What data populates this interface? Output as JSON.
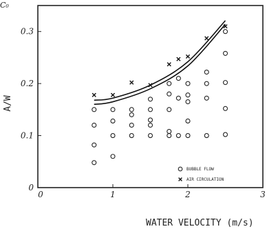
{
  "chart_data": {
    "type": "scatter",
    "corner_label": "C₀",
    "xlabel": "WATER VELOCITY (m/s)",
    "ylabel": "A/W",
    "xlim": [
      0,
      3
    ],
    "ylim": [
      0,
      0.35
    ],
    "xticks": [
      "0",
      "1",
      "2",
      "3"
    ],
    "yticks": [
      "0",
      "0.1",
      "0.2",
      "0.3"
    ],
    "ytick_values": [
      0,
      0.1,
      0.2,
      0.3
    ],
    "xtick_values": [
      0,
      1,
      2,
      3
    ],
    "series": [
      {
        "name": "BUBBLE FLOW",
        "marker": "circle",
        "points": [
          [
            0.75,
            0.15
          ],
          [
            0.75,
            0.12
          ],
          [
            0.75,
            0.082
          ],
          [
            0.75,
            0.048
          ],
          [
            1.0,
            0.15
          ],
          [
            1.0,
            0.128
          ],
          [
            1.0,
            0.1
          ],
          [
            1.0,
            0.06
          ],
          [
            1.25,
            0.15
          ],
          [
            1.25,
            0.14
          ],
          [
            1.25,
            0.12
          ],
          [
            1.25,
            0.1
          ],
          [
            1.5,
            0.17
          ],
          [
            1.5,
            0.15
          ],
          [
            1.5,
            0.13
          ],
          [
            1.5,
            0.12
          ],
          [
            1.5,
            0.1
          ],
          [
            1.75,
            0.2
          ],
          [
            1.75,
            0.18
          ],
          [
            1.75,
            0.15
          ],
          [
            1.75,
            0.108
          ],
          [
            1.75,
            0.1
          ],
          [
            1.875,
            0.21
          ],
          [
            1.875,
            0.172
          ],
          [
            1.875,
            0.1
          ],
          [
            2.0,
            0.2
          ],
          [
            2.0,
            0.178
          ],
          [
            2.0,
            0.165
          ],
          [
            2.0,
            0.128
          ],
          [
            2.0,
            0.1
          ],
          [
            2.25,
            0.222
          ],
          [
            2.25,
            0.2
          ],
          [
            2.25,
            0.172
          ],
          [
            2.25,
            0.1
          ],
          [
            2.5,
            0.3
          ],
          [
            2.5,
            0.258
          ],
          [
            2.5,
            0.202
          ],
          [
            2.5,
            0.152
          ],
          [
            2.5,
            0.102
          ]
        ]
      },
      {
        "name": "AIR CIRCULATION",
        "marker": "x",
        "points": [
          [
            0.75,
            0.178
          ],
          [
            1.0,
            0.178
          ],
          [
            1.25,
            0.202
          ],
          [
            1.5,
            0.197
          ],
          [
            1.75,
            0.237
          ],
          [
            1.875,
            0.247
          ],
          [
            2.0,
            0.252
          ],
          [
            2.25,
            0.287
          ],
          [
            2.5,
            0.31
          ]
        ]
      }
    ],
    "boundary_curves": [
      {
        "x": [
          0.75,
          1.0,
          1.5,
          2.0,
          2.5
        ],
        "y": [
          0.168,
          0.172,
          0.197,
          0.242,
          0.321
        ]
      },
      {
        "x": [
          0.75,
          1.0,
          1.5,
          2.0,
          2.5
        ],
        "y": [
          0.16,
          0.165,
          0.19,
          0.234,
          0.314
        ]
      }
    ],
    "legend_position": "lower-right"
  }
}
